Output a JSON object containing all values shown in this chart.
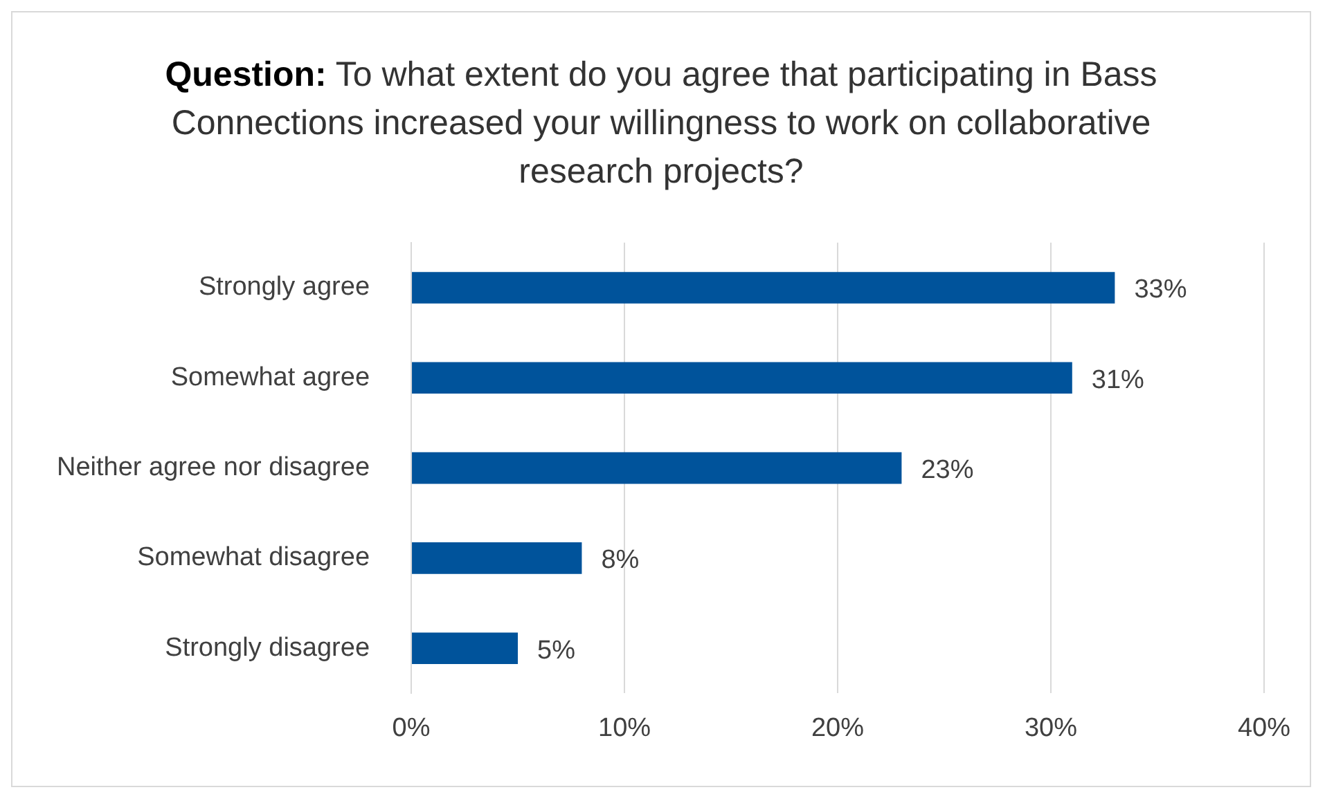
{
  "chart_data": {
    "type": "bar",
    "orientation": "horizontal",
    "title": "Question: To what extent do you agree that participating in Bass Connections increased your willingness to work on collaborative research projects?",
    "categories": [
      "Strongly agree",
      "Somewhat agree",
      "Neither agree nor disagree",
      "Somewhat disagree",
      "Strongly disagree"
    ],
    "values": [
      33,
      31,
      23,
      8,
      5
    ],
    "color": "#00539b",
    "xlim": [
      0,
      40
    ],
    "xticks": [
      {
        "value": 0,
        "label": "0%"
      },
      {
        "value": 10,
        "label": "10%"
      },
      {
        "value": 20,
        "label": "20%"
      },
      {
        "value": 30,
        "label": "30%"
      },
      {
        "value": 40,
        "label": "40%"
      }
    ],
    "value_labels": [
      "33%",
      "31%",
      "23%",
      "8%",
      "5%"
    ],
    "grid": "x",
    "legend": false
  }
}
